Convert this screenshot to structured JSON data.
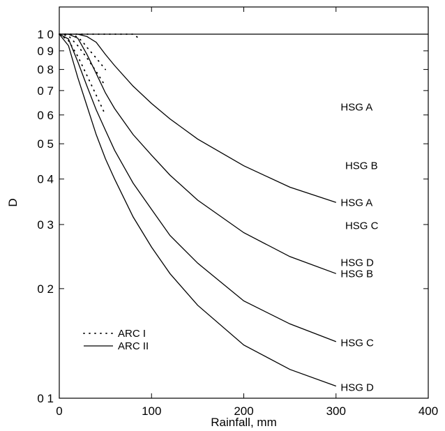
{
  "chart_data": {
    "type": "line",
    "title": "",
    "xlabel": "Rainfall, mm",
    "ylabel": "D",
    "xlim": [
      0,
      400
    ],
    "ylim": [
      0.1,
      1.0
    ],
    "yscale": "log",
    "grid": false,
    "x_ticks": [
      0,
      100,
      200,
      300,
      400
    ],
    "x_tick_labels": [
      "0",
      "100",
      "200",
      "300",
      "400"
    ],
    "y_ticks": [
      0.1,
      0.2,
      0.3,
      0.4,
      0.5,
      0.6,
      0.7,
      0.8,
      0.9,
      1.0
    ],
    "y_tick_labels": [
      "0 1",
      "0 2",
      "0 3",
      "0 4",
      "0 5",
      "0 6",
      "0 7",
      "0 8",
      "0 9",
      "1 0"
    ],
    "legend": {
      "position": "bottom-left",
      "entries": [
        {
          "label": "ARC I",
          "style": "dotted"
        },
        {
          "label": "ARC II",
          "style": "solid"
        }
      ]
    },
    "series": [
      {
        "group": "ARC I",
        "style": "dotted",
        "name": "HSG A",
        "x": [
          0,
          10,
          20,
          30,
          40,
          50,
          60,
          70,
          80,
          85
        ],
        "y": [
          1.0,
          1.0,
          1.0,
          1.0,
          1.0,
          1.0,
          1.0,
          1.0,
          1.0,
          0.98
        ]
      },
      {
        "group": "ARC I",
        "style": "dotted",
        "name": "HSG B",
        "x": [
          0,
          10,
          15,
          20,
          25,
          30,
          40,
          50
        ],
        "y": [
          1.0,
          1.0,
          0.995,
          0.98,
          0.955,
          0.92,
          0.86,
          0.8
        ]
      },
      {
        "group": "ARC I",
        "style": "dotted",
        "name": "HSG C",
        "x": [
          0,
          10,
          20,
          30,
          40,
          50
        ],
        "y": [
          1.0,
          0.99,
          0.93,
          0.86,
          0.79,
          0.72
        ]
      },
      {
        "group": "ARC I",
        "style": "dotted",
        "name": "HSG D",
        "x": [
          0,
          10,
          20,
          30,
          40,
          50
        ],
        "y": [
          1.0,
          0.96,
          0.87,
          0.77,
          0.68,
          0.6
        ]
      },
      {
        "group": "ARC II",
        "style": "solid",
        "name": "HSG A",
        "x": [
          0,
          10,
          20,
          30,
          40,
          50,
          60,
          80,
          100,
          120,
          150,
          200,
          250,
          300
        ],
        "y": [
          1.0,
          1.0,
          1.0,
          0.985,
          0.95,
          0.88,
          0.82,
          0.72,
          0.645,
          0.585,
          0.515,
          0.435,
          0.38,
          0.345
        ]
      },
      {
        "group": "ARC II",
        "style": "solid",
        "name": "HSG B",
        "x": [
          0,
          10,
          20,
          30,
          40,
          50,
          60,
          80,
          100,
          120,
          150,
          200,
          250,
          300
        ],
        "y": [
          1.0,
          1.0,
          0.975,
          0.88,
          0.78,
          0.69,
          0.625,
          0.53,
          0.465,
          0.41,
          0.35,
          0.285,
          0.245,
          0.22
        ]
      },
      {
        "group": "ARC II",
        "style": "solid",
        "name": "HSG C",
        "x": [
          0,
          10,
          20,
          30,
          40,
          50,
          60,
          80,
          100,
          120,
          150,
          200,
          250,
          300
        ],
        "y": [
          1.0,
          0.97,
          0.84,
          0.72,
          0.62,
          0.545,
          0.48,
          0.39,
          0.33,
          0.28,
          0.235,
          0.185,
          0.16,
          0.143
        ]
      },
      {
        "group": "ARC II",
        "style": "solid",
        "name": "HSG D",
        "x": [
          0,
          10,
          20,
          30,
          40,
          50,
          60,
          80,
          100,
          120,
          150,
          200,
          250,
          300
        ],
        "y": [
          1.0,
          0.93,
          0.76,
          0.635,
          0.53,
          0.455,
          0.4,
          0.315,
          0.26,
          0.22,
          0.18,
          0.14,
          0.12,
          0.108
        ]
      }
    ],
    "annotations": [
      {
        "text": "HSG A",
        "x": 305,
        "y": 0.63
      },
      {
        "text": "HSG B",
        "x": 310,
        "y": 0.435
      },
      {
        "text": "HSG A",
        "x": 305,
        "y": 0.345
      },
      {
        "text": "HSG C",
        "x": 310,
        "y": 0.298
      },
      {
        "text": "HSG D",
        "x": 305,
        "y": 0.236
      },
      {
        "text": "HSG B",
        "x": 305,
        "y": 0.22
      },
      {
        "text": "HSG C",
        "x": 305,
        "y": 0.142
      },
      {
        "text": "HSG D",
        "x": 305,
        "y": 0.107
      }
    ]
  }
}
